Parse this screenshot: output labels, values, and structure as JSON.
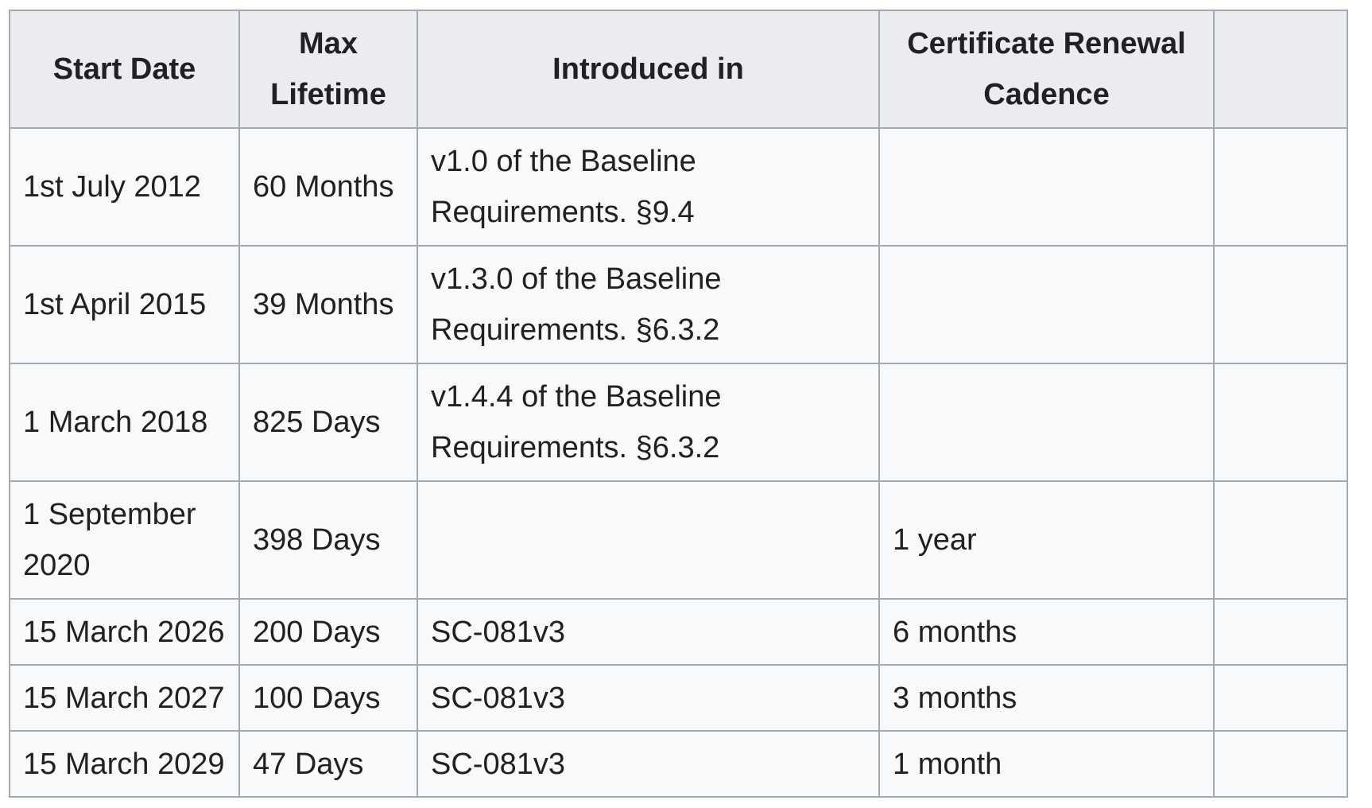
{
  "table": {
    "headers": [
      {
        "lines": [
          "Start Date"
        ]
      },
      {
        "lines": [
          "Max",
          "Lifetime"
        ]
      },
      {
        "lines": [
          "Introduced in"
        ]
      },
      {
        "lines": [
          "Certificate Renewal",
          "Cadence"
        ]
      }
    ],
    "rows": [
      {
        "start_date": [
          "1st July 2012"
        ],
        "max_lifetime": "60 Months",
        "introduced_in": [
          "v1.0 of the Baseline",
          "Requirements. §9.4"
        ],
        "renewal_cadence": ""
      },
      {
        "start_date": [
          "1st April 2015"
        ],
        "max_lifetime": "39 Months",
        "introduced_in": [
          "v1.3.0 of the Baseline",
          "Requirements. §6.3.2"
        ],
        "renewal_cadence": ""
      },
      {
        "start_date": [
          "1 March 2018"
        ],
        "max_lifetime": "825 Days",
        "introduced_in": [
          "v1.4.4 of the Baseline",
          "Requirements. §6.3.2"
        ],
        "renewal_cadence": ""
      },
      {
        "start_date": [
          "1 September",
          "2020"
        ],
        "max_lifetime": "398 Days",
        "introduced_in": [
          ""
        ],
        "renewal_cadence": "1 year"
      },
      {
        "start_date": [
          "15 March 2026"
        ],
        "max_lifetime": "200 Days",
        "introduced_in": [
          "SC-081v3"
        ],
        "renewal_cadence": "6 months"
      },
      {
        "start_date": [
          "15 March 2027"
        ],
        "max_lifetime": "100 Days",
        "introduced_in": [
          "SC-081v3"
        ],
        "renewal_cadence": "3 months"
      },
      {
        "start_date": [
          "15 March 2029"
        ],
        "max_lifetime": "47 Days",
        "introduced_in": [
          "SC-081v3"
        ],
        "renewal_cadence": "1 month"
      }
    ]
  }
}
